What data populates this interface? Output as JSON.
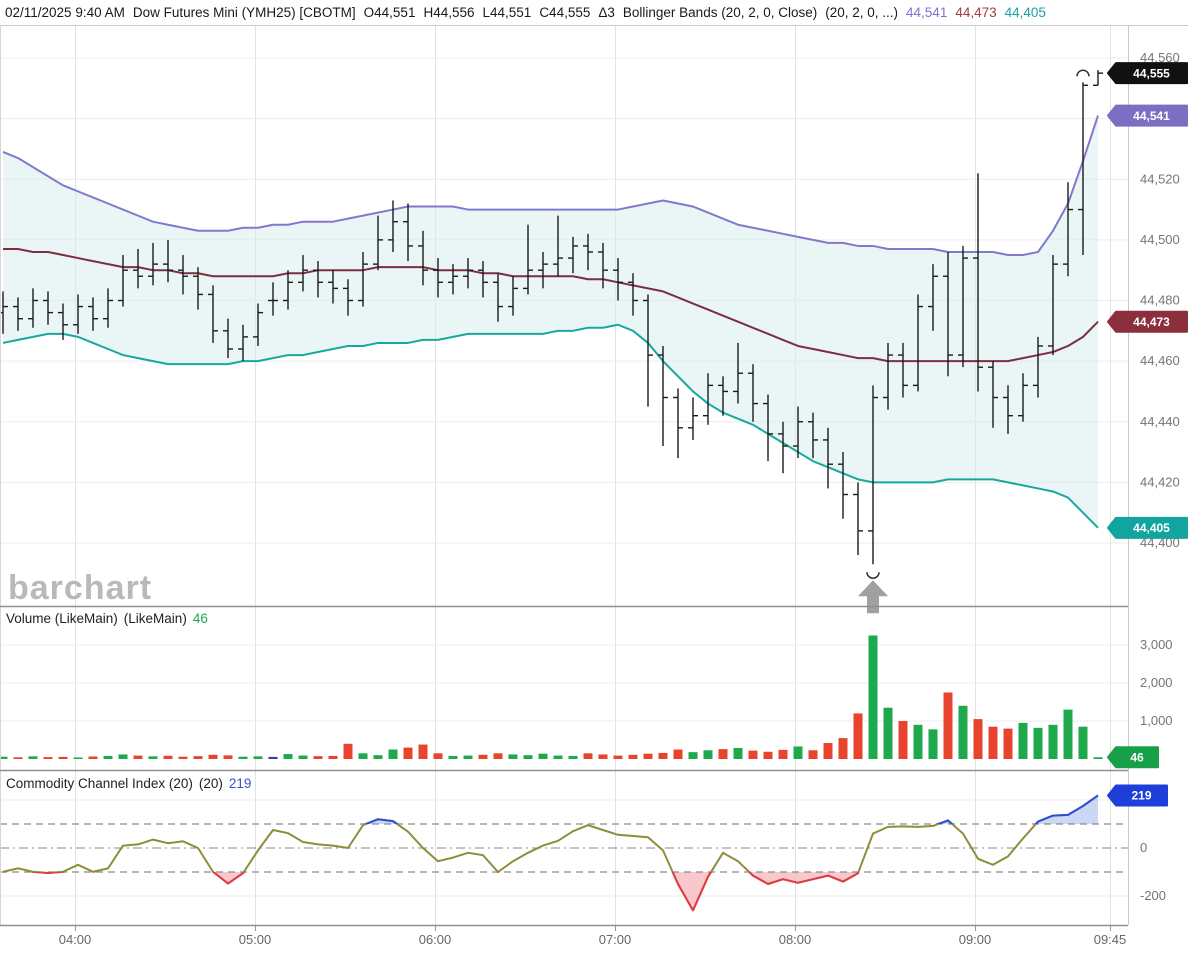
{
  "watermark": "barchart",
  "header": {
    "segments": [
      {
        "text": "02/11/2025 9:40 AM",
        "color": "#1a1a1a"
      },
      {
        "text": "Dow Futures Mini (YMH25) [CBOTM]",
        "color": "#1a1a1a"
      },
      {
        "text": "O44,551",
        "color": "#1a1a1a"
      },
      {
        "text": "H44,556",
        "color": "#1a1a1a"
      },
      {
        "text": "L44,551",
        "color": "#1a1a1a"
      },
      {
        "text": "C44,555",
        "color": "#1a1a1a"
      },
      {
        "text": "Δ3",
        "color": "#1a1a1a"
      },
      {
        "text": "Bollinger Bands (20, 2, 0, Close)",
        "color": "#1a1a1a"
      },
      {
        "text": "(20, 2, 0, ...)",
        "color": "#1a1a1a"
      },
      {
        "text": "44,541",
        "color": "#7f74cd"
      },
      {
        "text": "44,473",
        "color": "#a23b49"
      },
      {
        "text": "44,405",
        "color": "#17a29e"
      }
    ]
  },
  "panels": {
    "volume_label": [
      {
        "text": "Volume (LikeMain)",
        "color": "#222"
      },
      {
        "text": "(LikeMain)",
        "color": "#222"
      },
      {
        "text": "46",
        "color": "#1fa94d"
      }
    ],
    "cci_label": [
      {
        "text": "Commodity Channel Index (20)",
        "color": "#222"
      },
      {
        "text": "(20)",
        "color": "#222"
      },
      {
        "text": "219",
        "color": "#3354d1"
      }
    ]
  },
  "colors": {
    "up": "#1fa94d",
    "down": "#e8432c",
    "doji": "#2b3f9b",
    "bar": "#1b1b1b",
    "bb_upper": "#8279cc",
    "bb_middle": "#7b3040",
    "bb_lower": "#18a99e",
    "bb_fill": "#d8ecec",
    "cci_line": "#8e8e3a",
    "cci_above": "#2b50d8",
    "cci_below": "#e23a45",
    "cci_fill_above": "#aabdf0",
    "cci_fill_below": "#f4a3ab",
    "badge_last": "#111111",
    "badge_upper": "#7b6fc4",
    "badge_middle": "#8c2f3c",
    "badge_lower": "#12a5a0",
    "badge_volume": "#18a048",
    "badge_cci": "#1d3ed9",
    "axis_text": "#757575",
    "time_text": "#666666",
    "grid_v": "#e2e2e2",
    "grid_h": "#ececec",
    "divider": "#8f8f8f",
    "border": "#c8c8c8",
    "level_line": "#8a8a8a",
    "marker": "#a0a0a0",
    "arc": "#333333"
  },
  "x_axis": {
    "start_time": "03:35",
    "interval_min": 5,
    "labels": [
      "04:00",
      "05:00",
      "06:00",
      "07:00",
      "08:00",
      "09:00",
      "09:45"
    ]
  },
  "chart_data": [
    {
      "type": "ohlc",
      "title": "Dow Futures Mini (YMH25) [CBOTM]",
      "indicator": "Bollinger Bands (20, 2, 0, Close)",
      "last": {
        "open": 44551,
        "high": 44556,
        "low": 44551,
        "close": 44555,
        "change": 3
      },
      "ylim": [
        44400,
        44560
      ],
      "y_ticks": [
        44400,
        44420,
        44440,
        44460,
        44480,
        44500,
        44520,
        44540,
        44560
      ],
      "bars": [
        [
          44476,
          44483,
          44469,
          44478
        ],
        [
          44478,
          44481,
          44470,
          44474
        ],
        [
          44474,
          44484,
          44471,
          44480
        ],
        [
          44480,
          44483,
          44472,
          44476
        ],
        [
          44476,
          44479,
          44467,
          44472
        ],
        [
          44472,
          44482,
          44469,
          44478
        ],
        [
          44478,
          44481,
          44470,
          44474
        ],
        [
          44474,
          44484,
          44471,
          44480
        ],
        [
          44480,
          44495,
          44478,
          44490
        ],
        [
          44490,
          44497,
          44484,
          44488
        ],
        [
          44488,
          44499,
          44485,
          44492
        ],
        [
          44492,
          44500,
          44486,
          44490
        ],
        [
          44490,
          44495,
          44482,
          44488
        ],
        [
          44488,
          44491,
          44477,
          44482
        ],
        [
          44482,
          44485,
          44466,
          44470
        ],
        [
          44470,
          44474,
          44461,
          44464
        ],
        [
          44464,
          44472,
          44460,
          44468
        ],
        [
          44468,
          44479,
          44465,
          44476
        ],
        [
          44480,
          44486,
          44475,
          44480
        ],
        [
          44480,
          44490,
          44477,
          44486
        ],
        [
          44486,
          44495,
          44483,
          44490
        ],
        [
          44490,
          44493,
          44481,
          44486
        ],
        [
          44486,
          44490,
          44479,
          44484
        ],
        [
          44484,
          44487,
          44475,
          44480
        ],
        [
          44480,
          44496,
          44478,
          44492
        ],
        [
          44492,
          44508,
          44490,
          44500
        ],
        [
          44500,
          44513,
          44496,
          44506
        ],
        [
          44506,
          44512,
          44493,
          44498
        ],
        [
          44498,
          44503,
          44485,
          44490
        ],
        [
          44490,
          44494,
          44481,
          44486
        ],
        [
          44486,
          44492,
          44482,
          44488
        ],
        [
          44488,
          44494,
          44484,
          44490
        ],
        [
          44490,
          44493,
          44481,
          44486
        ],
        [
          44486,
          44489,
          44473,
          44478
        ],
        [
          44478,
          44488,
          44475,
          44484
        ],
        [
          44484,
          44505,
          44482,
          44490
        ],
        [
          44490,
          44496,
          44484,
          44492
        ],
        [
          44492,
          44508,
          44488,
          44494
        ],
        [
          44494,
          44501,
          44489,
          44498
        ],
        [
          44498,
          44502,
          44490,
          44496
        ],
        [
          44496,
          44499,
          44484,
          44490
        ],
        [
          44490,
          44494,
          44480,
          44486
        ],
        [
          44486,
          44489,
          44475,
          44480
        ],
        [
          44480,
          44482,
          44445,
          44462
        ],
        [
          44462,
          44465,
          44432,
          44448
        ],
        [
          44448,
          44451,
          44428,
          44438
        ],
        [
          44438,
          44448,
          44434,
          44442
        ],
        [
          44442,
          44456,
          44439,
          44452
        ],
        [
          44452,
          44455,
          44442,
          44450
        ],
        [
          44450,
          44466,
          44446,
          44456
        ],
        [
          44456,
          44459,
          44440,
          44446
        ],
        [
          44446,
          44449,
          44427,
          44436
        ],
        [
          44436,
          44440,
          44423,
          44432
        ],
        [
          44432,
          44445,
          44428,
          44440
        ],
        [
          44440,
          44443,
          44428,
          44434
        ],
        [
          44434,
          44438,
          44418,
          44426
        ],
        [
          44426,
          44430,
          44408,
          44416
        ],
        [
          44416,
          44420,
          44396,
          44404
        ],
        [
          44404,
          44452,
          44393,
          44448
        ],
        [
          44448,
          44466,
          44444,
          44462
        ],
        [
          44462,
          44466,
          44448,
          44452
        ],
        [
          44452,
          44482,
          44450,
          44478
        ],
        [
          44478,
          44492,
          44470,
          44488
        ],
        [
          44488,
          44496,
          44455,
          44462
        ],
        [
          44462,
          44498,
          44458,
          44494
        ],
        [
          44494,
          44522,
          44450,
          44458
        ],
        [
          44458,
          44460,
          44438,
          44448
        ],
        [
          44448,
          44452,
          44436,
          44442
        ],
        [
          44442,
          44456,
          44440,
          44452
        ],
        [
          44452,
          44468,
          44448,
          44465
        ],
        [
          44465,
          44495,
          44462,
          44492
        ],
        [
          44492,
          44519,
          44488,
          44510
        ],
        [
          44510,
          44552,
          44495,
          44551
        ],
        [
          44551,
          44556,
          44551,
          44555
        ]
      ],
      "bb_upper": [
        44529,
        44527,
        44524,
        44521,
        44518,
        44516,
        44514,
        44512,
        44510,
        44508,
        44506,
        44505,
        44504,
        44503,
        44503,
        44503,
        44504,
        44504,
        44505,
        44505,
        44506,
        44506,
        44506,
        44507,
        44508,
        44509,
        44510,
        44511,
        44511,
        44511,
        44511,
        44510,
        44510,
        44510,
        44510,
        44510,
        44510,
        44510,
        44510,
        44510,
        44510,
        44510,
        44511,
        44512,
        44513,
        44512,
        44511,
        44509,
        44507,
        44505,
        44504,
        44503,
        44502,
        44501,
        44500,
        44499,
        44499,
        44498,
        44498,
        44497,
        44497,
        44497,
        44497,
        44496,
        44496,
        44496,
        44496,
        44495,
        44495,
        44496,
        44503,
        44512,
        44526,
        44541
      ],
      "bb_middle": [
        44497,
        44497,
        44496,
        44496,
        44495,
        44494,
        44493,
        44492,
        44491,
        44491,
        44490,
        44490,
        44489,
        44489,
        44488,
        44488,
        44488,
        44488,
        44488,
        44489,
        44489,
        44490,
        44490,
        44490,
        44490,
        44491,
        44491,
        44491,
        44491,
        44490,
        44490,
        44490,
        44489,
        44489,
        44488,
        44488,
        44488,
        44488,
        44488,
        44487,
        44487,
        44486,
        44485,
        44484,
        44483,
        44481,
        44479,
        44477,
        44475,
        44473,
        44471,
        44469,
        44467,
        44465,
        44464,
        44463,
        44462,
        44461,
        44461,
        44460,
        44460,
        44460,
        44460,
        44460,
        44460,
        44460,
        44460,
        44460,
        44461,
        44462,
        44463,
        44465,
        44468,
        44473
      ],
      "bb_lower": [
        44466,
        44467,
        44468,
        44469,
        44469,
        44468,
        44466,
        44464,
        44462,
        44461,
        44460,
        44459,
        44459,
        44459,
        44459,
        44459,
        44460,
        44460,
        44461,
        44462,
        44462,
        44463,
        44464,
        44465,
        44465,
        44466,
        44466,
        44466,
        44467,
        44467,
        44468,
        44469,
        44469,
        44469,
        44469,
        44469,
        44469,
        44470,
        44470,
        44471,
        44471,
        44472,
        44470,
        44466,
        44460,
        44455,
        44450,
        44446,
        44443,
        44441,
        44439,
        44436,
        44433,
        44430,
        44427,
        44425,
        44423,
        44421,
        44420,
        44420,
        44420,
        44420,
        44420,
        44421,
        44421,
        44421,
        44421,
        44420,
        44419,
        44418,
        44417,
        44415,
        44410,
        44405
      ],
      "badges": [
        {
          "value": 44555,
          "color_key": "badge_last"
        },
        {
          "value": 44541,
          "color_key": "badge_upper"
        },
        {
          "value": 44473,
          "color_key": "badge_middle"
        },
        {
          "value": 44405,
          "color_key": "badge_lower"
        }
      ],
      "markers": [
        {
          "index": 58,
          "type": "arc-below-with-arrow"
        },
        {
          "index": 72,
          "type": "arc-above"
        }
      ]
    },
    {
      "type": "bar",
      "title": "Volume (LikeMain)",
      "current": 46,
      "ylim": [
        0,
        3500
      ],
      "y_ticks": [
        1000,
        2000,
        3000
      ],
      "values": [
        60,
        45,
        70,
        50,
        55,
        40,
        65,
        80,
        120,
        90,
        70,
        85,
        60,
        75,
        110,
        95,
        60,
        70,
        55,
        130,
        90,
        75,
        80,
        400,
        150,
        100,
        250,
        300,
        380,
        150,
        80,
        90,
        110,
        150,
        120,
        100,
        140,
        90,
        80,
        150,
        120,
        90,
        110,
        140,
        160,
        250,
        180,
        230,
        260,
        290,
        220,
        190,
        240,
        330,
        230,
        420,
        550,
        1200,
        3250,
        1350,
        1000,
        900,
        780,
        1750,
        1400,
        1050,
        850,
        800,
        950,
        820,
        900,
        1300,
        850,
        46
      ]
    },
    {
      "type": "line",
      "title": "Commodity Channel Index (20)",
      "current": 219,
      "ylim": [
        -300,
        260
      ],
      "levels": {
        "outer_high": 200,
        "upper": 100,
        "zero": 0,
        "lower": -100,
        "outer_low": -200
      },
      "labeled_ticks": [
        0,
        -200
      ],
      "values": [
        -99,
        -85,
        -99,
        -104,
        -99,
        -70,
        -99,
        -85,
        10,
        15,
        35,
        20,
        28,
        0,
        -99,
        -148,
        -105,
        -10,
        75,
        62,
        25,
        15,
        10,
        0,
        95,
        120,
        112,
        68,
        0,
        -55,
        -40,
        -20,
        -30,
        -100,
        -55,
        -20,
        10,
        30,
        70,
        95,
        75,
        55,
        50,
        45,
        -10,
        -150,
        -260,
        -120,
        -20,
        -55,
        -115,
        -150,
        -130,
        -145,
        -130,
        -115,
        -140,
        -105,
        60,
        88,
        90,
        88,
        92,
        115,
        60,
        -45,
        -70,
        -35,
        40,
        110,
        135,
        138,
        175,
        219
      ]
    }
  ]
}
